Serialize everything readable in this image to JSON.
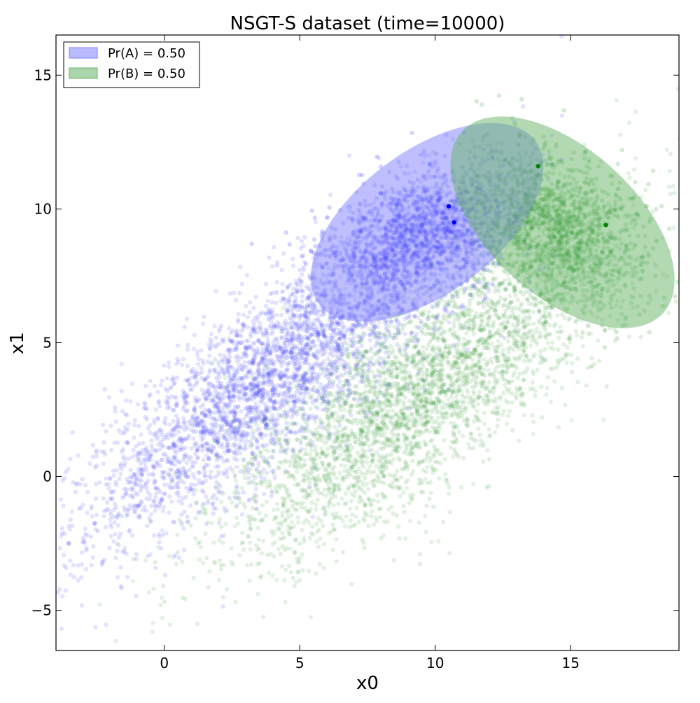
{
  "chart_data": {
    "type": "scatter",
    "title": "NSGT-S dataset (time=10000)",
    "xlabel": "x0",
    "ylabel": "x1",
    "xlim": [
      -4,
      19
    ],
    "ylim": [
      -6.5,
      16.5
    ],
    "xticks": [
      0,
      5,
      10,
      15
    ],
    "yticks": [
      -5,
      0,
      5,
      10,
      15
    ],
    "xtick_labels": [
      "0",
      "5",
      "10",
      "15"
    ],
    "ytick_labels": [
      "−5",
      "0",
      "5",
      "10",
      "15"
    ],
    "grid": false,
    "legend_position": "top-left",
    "point_counts": {
      "A": 5000,
      "B": 5000
    },
    "series": [
      {
        "name": "Pr(A) = 0.50",
        "color": "#0000ff",
        "ellipse_color": "#7f7fff",
        "cloud": {
          "mean": [
            4.0,
            3.8
          ],
          "std_major": 4.5,
          "std_minor": 1.3,
          "angle_deg": 40
        },
        "recent_cluster": {
          "mean": [
            9.5,
            9.0
          ],
          "std_major": 1.8,
          "std_minor": 1.1,
          "angle_deg": 25
        },
        "ellipse": {
          "center": [
            9.7,
            9.5
          ],
          "width": 10.0,
          "height": 5.3,
          "angle_deg": 37
        },
        "highlighted_points": [
          [
            10.5,
            10.1
          ],
          [
            10.7,
            9.5
          ]
        ]
      },
      {
        "name": "Pr(B) = 0.50",
        "color": "#008000",
        "ellipse_color": "#66b366",
        "cloud": {
          "mean": [
            9.5,
            3.2
          ],
          "std_major": 4.5,
          "std_minor": 1.5,
          "angle_deg": 40
        },
        "recent_cluster": {
          "mean": [
            14.5,
            9.3
          ],
          "std_major": 1.7,
          "std_minor": 1.2,
          "angle_deg": -40
        },
        "ellipse": {
          "center": [
            14.7,
            9.5
          ],
          "width": 10.0,
          "height": 5.5,
          "angle_deg": -42
        },
        "highlighted_points": [
          [
            13.8,
            11.6
          ],
          [
            16.3,
            9.4
          ]
        ]
      }
    ]
  }
}
